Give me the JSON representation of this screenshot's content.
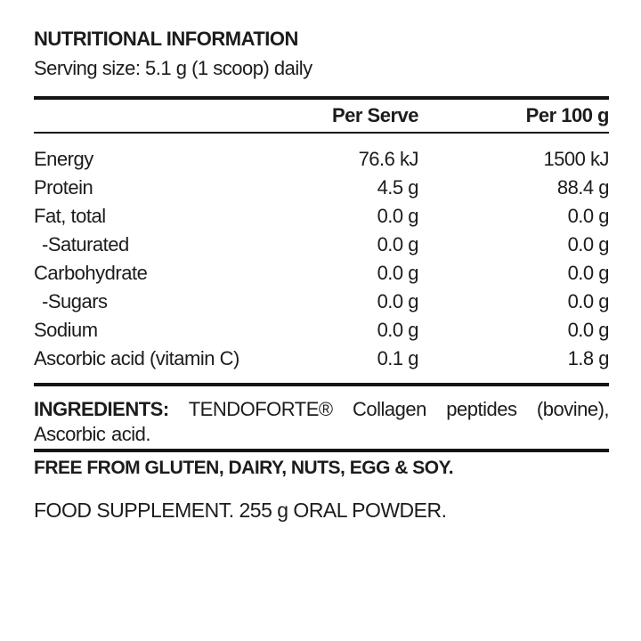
{
  "header": {
    "title": "NUTRITIONAL INFORMATION",
    "serving_size": "Serving size: 5.1 g (1 scoop) daily"
  },
  "table": {
    "columns": [
      "",
      "Per Serve",
      "Per 100 g"
    ],
    "rows": [
      {
        "label": "Energy",
        "per_serve": "76.6 kJ",
        "per_100g": "1500 kJ"
      },
      {
        "label": "Protein",
        "per_serve": "4.5 g",
        "per_100g": "88.4 g"
      },
      {
        "label": "Fat, total",
        "per_serve": "0.0 g",
        "per_100g": "0.0 g"
      },
      {
        "label": "-Saturated",
        "per_serve": "0.0 g",
        "per_100g": "0.0 g"
      },
      {
        "label": "Carbohydrate",
        "per_serve": "0.0 g",
        "per_100g": "0.0 g"
      },
      {
        "label": "-Sugars",
        "per_serve": "0.0 g",
        "per_100g": "0.0 g"
      },
      {
        "label": "Sodium",
        "per_serve": "0.0 g",
        "per_100g": "0.0 g"
      },
      {
        "label": "Ascorbic acid (vitamin C)",
        "per_serve": "0.1 g",
        "per_100g": "1.8 g"
      }
    ]
  },
  "ingredients": {
    "label": "INGREDIENTS:",
    "text": "TENDOFORTE® Collagen peptides (bovine), Ascorbic acid."
  },
  "footer": {
    "free_from": "FREE FROM GLUTEN, DAIRY, NUTS, EGG & SOY.",
    "supplement": "FOOD SUPPLEMENT. 255 g ORAL POWDER."
  },
  "colors": {
    "background": "#ffffff",
    "text": "#1c1c1c",
    "rule": "#141414"
  }
}
